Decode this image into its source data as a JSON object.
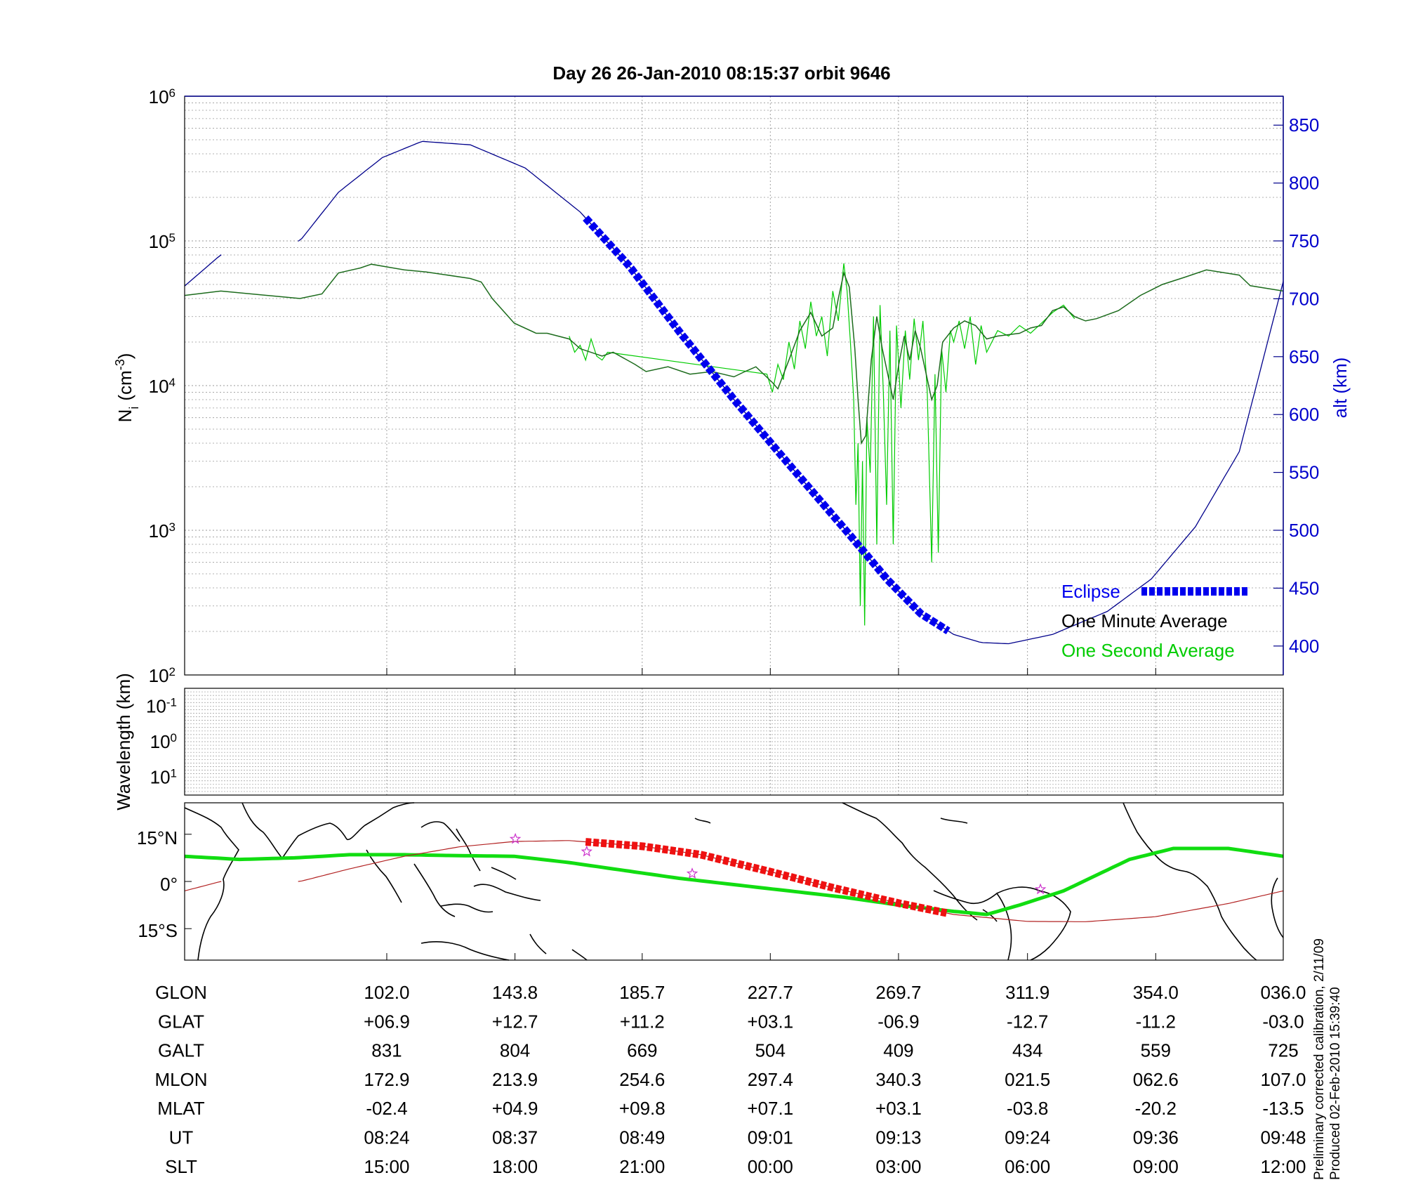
{
  "title": "Day 26  26-Jan-2010 08:15:37   orbit 9646",
  "colors": {
    "alt": "#00008b",
    "eclipse": "#0000ee",
    "minute": "#1c6b1c",
    "second": "#00cc00",
    "track": "#b22222",
    "trackEclipse": "#ee1111",
    "dipEquator": "#11dd11",
    "grid": "#999999",
    "star": "#cc33cc"
  },
  "chart_data": [
    {
      "type": "line",
      "panel": "ion-density",
      "ylabel": "N_i (cm^-3)",
      "ylabel_main": "N",
      "ylabel_sub": "i",
      "ylabel_open": "(cm",
      "ylabel_sup": "-3",
      "ylabel_close": ")",
      "yscale": "log",
      "ylim": [
        100,
        1000000
      ],
      "y_tick_labels": [
        {
          "base": "10",
          "exp": "6",
          "value": 1000000
        },
        {
          "base": "10",
          "exp": "5",
          "value": 100000
        },
        {
          "base": "10",
          "exp": "4",
          "value": 10000
        },
        {
          "base": "10",
          "exp": "3",
          "value": 1000
        },
        {
          "base": "10",
          "exp": "2",
          "value": 100
        }
      ],
      "y2label": "alt (km)",
      "y2lim": [
        375,
        875
      ],
      "y2_ticks": [
        "850",
        "800",
        "750",
        "700",
        "650",
        "600",
        "550",
        "500",
        "450",
        "400"
      ],
      "xlim": [
        0,
        1
      ],
      "x_ticks": [
        0.184,
        0.3007,
        0.4165,
        0.5331,
        0.6498,
        0.7672,
        0.8839,
        1.0
      ],
      "legend": {
        "placement": "bottom-right",
        "eclipse": "Eclipse",
        "minute": "One Minute Average",
        "second": "One Second Average"
      },
      "altitude_km": [
        [
          0,
          711
        ],
        [
          0.033,
          738
        ],
        [
          0.105,
          750
        ],
        [
          0.14,
          792
        ],
        [
          0.18,
          822
        ],
        [
          0.216,
          836
        ],
        [
          0.26,
          833
        ],
        [
          0.31,
          813
        ],
        [
          0.36,
          775
        ],
        [
          0.405,
          728
        ],
        [
          0.45,
          672
        ],
        [
          0.5,
          613
        ],
        [
          0.55,
          557
        ],
        [
          0.6,
          502
        ],
        [
          0.64,
          457
        ],
        [
          0.67,
          428
        ],
        [
          0.7,
          410
        ],
        [
          0.725,
          403
        ],
        [
          0.75,
          402
        ],
        [
          0.79,
          410
        ],
        [
          0.84,
          430
        ],
        [
          0.88,
          458
        ],
        [
          0.92,
          503
        ],
        [
          0.96,
          568
        ],
        [
          1.0,
          715
        ]
      ],
      "altitude_gap": [
        0.034,
        0.103
      ],
      "eclipse_segment": [
        0.365,
        0.695
      ],
      "one_minute_average": [
        [
          0,
          42000
        ],
        [
          0.033,
          45000
        ],
        [
          0.105,
          40000
        ],
        [
          0.125,
          43000
        ],
        [
          0.14,
          60000
        ],
        [
          0.16,
          65000
        ],
        [
          0.17,
          69000
        ],
        [
          0.2,
          63000
        ],
        [
          0.22,
          61000
        ],
        [
          0.26,
          55000
        ],
        [
          0.27,
          52000
        ],
        [
          0.28,
          40000
        ],
        [
          0.3,
          27000
        ],
        [
          0.32,
          23000
        ],
        [
          0.33,
          23000
        ],
        [
          0.35,
          21000
        ],
        [
          0.36,
          18000
        ],
        [
          0.38,
          16000
        ],
        [
          0.39,
          17000
        ],
        [
          0.41,
          14000
        ],
        [
          0.42,
          12500
        ],
        [
          0.44,
          13500
        ],
        [
          0.46,
          12000
        ],
        [
          0.48,
          12500
        ],
        [
          0.49,
          12000
        ],
        [
          0.5,
          11500
        ],
        [
          0.51,
          12500
        ],
        [
          0.52,
          13500
        ],
        [
          0.535,
          10500
        ],
        [
          0.54,
          9500
        ],
        [
          0.55,
          15000
        ],
        [
          0.56,
          24000
        ],
        [
          0.57,
          32000
        ],
        [
          0.58,
          22000
        ],
        [
          0.59,
          25000
        ],
        [
          0.595,
          40000
        ],
        [
          0.6,
          60000
        ],
        [
          0.605,
          48000
        ],
        [
          0.61,
          18000
        ],
        [
          0.613,
          8000
        ],
        [
          0.616,
          4000
        ],
        [
          0.62,
          4500
        ],
        [
          0.625,
          15000
        ],
        [
          0.63,
          30000
        ],
        [
          0.635,
          18000
        ],
        [
          0.64,
          12000
        ],
        [
          0.645,
          8000
        ],
        [
          0.65,
          14000
        ],
        [
          0.655,
          22000
        ],
        [
          0.66,
          15000
        ],
        [
          0.665,
          24000
        ],
        [
          0.67,
          18000
        ],
        [
          0.675,
          12000
        ],
        [
          0.68,
          8000
        ],
        [
          0.685,
          10000
        ],
        [
          0.69,
          20000
        ],
        [
          0.7,
          25000
        ],
        [
          0.71,
          28000
        ],
        [
          0.72,
          26000
        ],
        [
          0.73,
          21000
        ],
        [
          0.74,
          22000
        ],
        [
          0.76,
          23000
        ],
        [
          0.77,
          25000
        ],
        [
          0.78,
          26000
        ],
        [
          0.79,
          33000
        ],
        [
          0.8,
          35000
        ],
        [
          0.81,
          30000
        ],
        [
          0.82,
          28000
        ],
        [
          0.83,
          29000
        ],
        [
          0.85,
          33000
        ],
        [
          0.87,
          42000
        ],
        [
          0.89,
          50000
        ],
        [
          0.91,
          56000
        ],
        [
          0.93,
          63000
        ],
        [
          0.96,
          58000
        ],
        [
          0.97,
          49000
        ],
        [
          1.0,
          45000
        ]
      ],
      "one_minute_gap": [
        0.034,
        0.103
      ],
      "one_second_average": [
        [
          0.35,
          22000
        ],
        [
          0.355,
          17000
        ],
        [
          0.36,
          19000
        ],
        [
          0.365,
          15000
        ],
        [
          0.37,
          21000
        ],
        [
          0.375,
          16000
        ],
        [
          0.38,
          15000
        ],
        [
          0.385,
          17000
        ],
        [
          0.53,
          12000
        ],
        [
          0.535,
          9000
        ],
        [
          0.54,
          14000
        ],
        [
          0.545,
          11000
        ],
        [
          0.55,
          20000
        ],
        [
          0.555,
          13000
        ],
        [
          0.56,
          28000
        ],
        [
          0.565,
          18000
        ],
        [
          0.57,
          38000
        ],
        [
          0.575,
          22000
        ],
        [
          0.58,
          30000
        ],
        [
          0.585,
          16000
        ],
        [
          0.59,
          45000
        ],
        [
          0.595,
          28000
        ],
        [
          0.6,
          70000
        ],
        [
          0.603,
          45000
        ],
        [
          0.606,
          20000
        ],
        [
          0.609,
          8000
        ],
        [
          0.611,
          1500
        ],
        [
          0.613,
          4000
        ],
        [
          0.615,
          300
        ],
        [
          0.617,
          3000
        ],
        [
          0.619,
          220
        ],
        [
          0.621,
          6000
        ],
        [
          0.624,
          2500
        ],
        [
          0.627,
          30000
        ],
        [
          0.63,
          800
        ],
        [
          0.633,
          36000
        ],
        [
          0.636,
          9000
        ],
        [
          0.639,
          1500
        ],
        [
          0.642,
          24000
        ],
        [
          0.645,
          800
        ],
        [
          0.648,
          26000
        ],
        [
          0.652,
          7000
        ],
        [
          0.656,
          24000
        ],
        [
          0.66,
          11000
        ],
        [
          0.664,
          29000
        ],
        [
          0.668,
          15000
        ],
        [
          0.672,
          28000
        ],
        [
          0.676,
          9000
        ],
        [
          0.68,
          600
        ],
        [
          0.683,
          12000
        ],
        [
          0.686,
          700
        ],
        [
          0.689,
          18000
        ],
        [
          0.693,
          9000
        ],
        [
          0.697,
          24000
        ],
        [
          0.7,
          20000
        ],
        [
          0.705,
          28000
        ],
        [
          0.71,
          18000
        ],
        [
          0.715,
          30000
        ],
        [
          0.72,
          14000
        ],
        [
          0.725,
          26000
        ],
        [
          0.73,
          17000
        ],
        [
          0.74,
          24000
        ],
        [
          0.75,
          22000
        ],
        [
          0.76,
          26000
        ],
        [
          0.77,
          23000
        ],
        [
          0.78,
          27000
        ],
        [
          0.79,
          32000
        ],
        [
          0.8,
          36000
        ],
        [
          0.81,
          29000
        ]
      ]
    },
    {
      "type": "heatmap",
      "panel": "wavelength",
      "ylabel": "Wavelength (km)",
      "yscale": "log",
      "y_tick_labels": [
        {
          "base": "10",
          "exp": "-1"
        },
        {
          "base": "10",
          "exp": "0"
        },
        {
          "base": "10",
          "exp": "1"
        }
      ],
      "values": []
    },
    {
      "type": "line",
      "panel": "ground-track-map",
      "xlim": [
        0,
        1
      ],
      "ylim": [
        -25,
        25
      ],
      "y_tick_labels": [
        "15°N",
        "0°",
        "15°S"
      ],
      "ground_track": [
        [
          0,
          -3
        ],
        [
          0.033,
          0
        ],
        [
          0.105,
          0
        ],
        [
          0.15,
          4
        ],
        [
          0.2,
          8
        ],
        [
          0.25,
          11
        ],
        [
          0.3,
          12.7
        ],
        [
          0.35,
          13
        ],
        [
          0.4165,
          11.2
        ],
        [
          0.47,
          8.5
        ],
        [
          0.5331,
          3.1
        ],
        [
          0.59,
          -2
        ],
        [
          0.6498,
          -6.9
        ],
        [
          0.7,
          -10.5
        ],
        [
          0.7672,
          -12.7
        ],
        [
          0.82,
          -12.8
        ],
        [
          0.8839,
          -11.2
        ],
        [
          0.95,
          -7
        ],
        [
          1.0,
          -3
        ]
      ],
      "ground_track_gap": [
        0.034,
        0.103
      ],
      "eclipse_track_segment": [
        0.365,
        0.695
      ],
      "dip_equator": [
        [
          0,
          8
        ],
        [
          0.05,
          7
        ],
        [
          0.1,
          7.5
        ],
        [
          0.15,
          8.5
        ],
        [
          0.2,
          8.5
        ],
        [
          0.25,
          8.2
        ],
        [
          0.3,
          8
        ],
        [
          0.35,
          6
        ],
        [
          0.4,
          3.5
        ],
        [
          0.45,
          1
        ],
        [
          0.5,
          -1
        ],
        [
          0.55,
          -3
        ],
        [
          0.6,
          -5
        ],
        [
          0.65,
          -7.5
        ],
        [
          0.7,
          -9.5
        ],
        [
          0.73,
          -10.5
        ],
        [
          0.76,
          -7.5
        ],
        [
          0.8,
          -3
        ],
        [
          0.83,
          2
        ],
        [
          0.86,
          7
        ],
        [
          0.9,
          10.5
        ],
        [
          0.95,
          10.5
        ],
        [
          1.0,
          8
        ]
      ],
      "stars": [
        [
          0.301,
          13.5
        ],
        [
          0.366,
          9.5
        ],
        [
          0.462,
          2.5
        ],
        [
          0.779,
          -2.5
        ]
      ]
    }
  ],
  "table": {
    "rows": [
      {
        "label": "GLON",
        "values": [
          "102.0",
          "143.8",
          "185.7",
          "227.7",
          "269.7",
          "311.9",
          "354.0",
          "036.0"
        ]
      },
      {
        "label": "GLAT",
        "values": [
          "+06.9",
          "+12.7",
          "+11.2",
          "+03.1",
          "-06.9",
          "-12.7",
          "-11.2",
          "-03.0"
        ]
      },
      {
        "label": "GALT",
        "values": [
          "831",
          "804",
          "669",
          "504",
          "409",
          "434",
          "559",
          "725"
        ]
      },
      {
        "label": "MLON",
        "values": [
          "172.9",
          "213.9",
          "254.6",
          "297.4",
          "340.3",
          "021.5",
          "062.6",
          "107.0"
        ]
      },
      {
        "label": "MLAT",
        "values": [
          "-02.4",
          "+04.9",
          "+09.8",
          "+07.1",
          "+03.1",
          "-03.8",
          "-20.2",
          "-13.5"
        ]
      },
      {
        "label": "UT",
        "values": [
          "08:24",
          "08:37",
          "08:49",
          "09:01",
          "09:13",
          "09:24",
          "09:36",
          "09:48"
        ]
      },
      {
        "label": "SLT",
        "values": [
          "15:00",
          "18:00",
          "21:00",
          "00:00",
          "03:00",
          "06:00",
          "09:00",
          "12:00"
        ]
      }
    ]
  },
  "footer": {
    "line1": "Preliminary corrected calibration, 2/11/09",
    "line2": "Produced 02-Feb-2010 15:39:40"
  }
}
